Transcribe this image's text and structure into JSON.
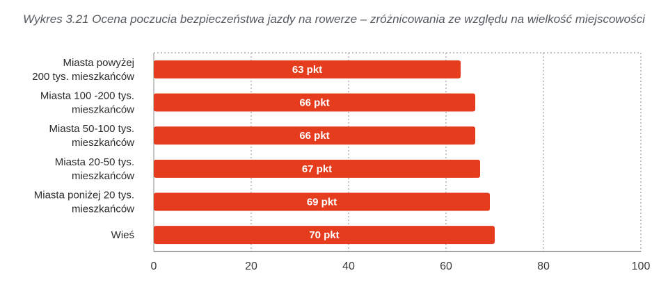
{
  "chart_data": {
    "type": "bar",
    "orientation": "horizontal",
    "title": "Wykres 3.21 Ocena poczucia bezpieczeństwa jazdy na rowerze – zróżnicowania ze względu na wielkość miejscowości",
    "categories": [
      [
        "Miasta powyżej",
        "200 tys. mieszkańców"
      ],
      [
        "Miasta 100 -200 tys.",
        "mieszkańców"
      ],
      [
        "Miasta 50-100 tys.",
        "mieszkańców"
      ],
      [
        "Miasta 20-50 tys.",
        "mieszkańców"
      ],
      [
        "Miasta poniżej 20 tys.",
        "mieszkańców"
      ],
      [
        "Wieś"
      ]
    ],
    "values": [
      63,
      66,
      66,
      67,
      69,
      70
    ],
    "data_labels": [
      "63 pkt",
      "66 pkt",
      "66 pkt",
      "67 pkt",
      "69 pkt",
      "70 pkt"
    ],
    "xlim": [
      0,
      100
    ],
    "xticks": [
      0,
      20,
      40,
      60,
      80,
      100
    ],
    "xlabel": "",
    "ylabel": "",
    "grid": true,
    "bar_color": "#e53c1e",
    "grid_color": "#8a8a8a"
  }
}
